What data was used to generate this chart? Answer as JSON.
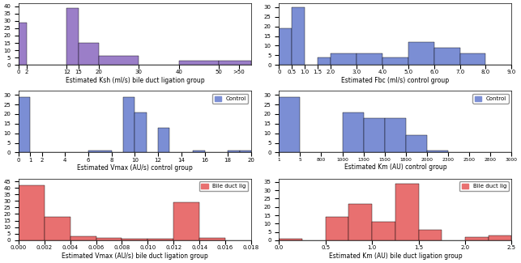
{
  "plots": [
    {
      "title": "Estimated Ksh (ml/s) bile duct ligation group",
      "color": "#9B7EC8",
      "bar_edges": [
        0,
        2,
        12,
        15,
        20,
        30,
        40,
        50,
        58
      ],
      "bar_heights": [
        29,
        0,
        39,
        15,
        6,
        0,
        3,
        3
      ],
      "xlim": [
        0,
        58
      ],
      "ylim": [
        0,
        42
      ],
      "xticks": [
        0,
        2,
        12,
        15,
        20,
        30,
        40,
        50,
        55
      ],
      "xticklabels": [
        "0",
        "2",
        "12",
        "15",
        "20",
        "30",
        "40",
        "50",
        ">50"
      ],
      "yticks": [
        0,
        5,
        10,
        15,
        20,
        25,
        30,
        35,
        40
      ],
      "legend": null,
      "categorical": false,
      "row": 0,
      "col": 0
    },
    {
      "title": "Estimated Fbc (ml/s) control group",
      "color": "#7B8ED4",
      "bar_edges": [
        0,
        0.5,
        1.0,
        1.5,
        2.0,
        3.0,
        4.0,
        5.0,
        6.0,
        7.0,
        8.0,
        9.0
      ],
      "bar_heights": [
        19,
        30,
        0,
        4,
        6,
        6,
        4,
        12,
        9,
        6,
        0
      ],
      "xlim": [
        0,
        9.0
      ],
      "ylim": [
        0,
        32
      ],
      "xticks": [
        0,
        0.5,
        1.0,
        1.5,
        2.0,
        3.0,
        4.0,
        5.0,
        6.0,
        7.0,
        8.0,
        9.0
      ],
      "xticklabels": [
        "0",
        "0.5",
        "1.0",
        "1.5",
        "2.0",
        "3.0",
        "4.0",
        "5.0",
        "6.0",
        "7.0",
        "8.0",
        "9.0"
      ],
      "yticks": [
        0,
        5,
        10,
        15,
        20,
        25,
        30
      ],
      "legend": null,
      "categorical": false,
      "row": 0,
      "col": 1
    },
    {
      "title": "Estimated Vmax (AU/s) control group",
      "color": "#7B8ED4",
      "bar_edges": [
        0,
        1,
        2,
        4,
        6,
        8,
        9,
        10,
        11,
        12,
        13,
        14,
        15,
        16,
        18,
        19,
        20
      ],
      "bar_heights": [
        29,
        0,
        0,
        0,
        1,
        0,
        29,
        21,
        0,
        13,
        0,
        0,
        1,
        0,
        1,
        1
      ],
      "xlim": [
        0,
        20
      ],
      "ylim": [
        0,
        32
      ],
      "xticks": [
        0,
        1,
        2,
        4,
        6,
        8,
        10,
        12,
        14,
        16,
        18,
        20
      ],
      "xticklabels": [
        "0",
        "1",
        "2",
        "4",
        "6",
        "8",
        "10",
        "12",
        "14",
        "16",
        "18",
        "20"
      ],
      "yticks": [
        0,
        5,
        10,
        15,
        20,
        25,
        30
      ],
      "legend": "Control",
      "legend_color": "#7B8ED4",
      "categorical": false,
      "row": 1,
      "col": 0
    },
    {
      "title": "Estimated Km (AU) control group",
      "color": "#7B8ED4",
      "bar_heights": [
        29,
        0,
        0,
        21,
        18,
        18,
        9,
        1,
        0,
        0,
        0
      ],
      "ylim": [
        0,
        32
      ],
      "xticklabels": [
        "1",
        "5",
        "800",
        "1000",
        "1300",
        "1500",
        "1800",
        "2000",
        "2300",
        "2500",
        "2800",
        "3000"
      ],
      "yticks": [
        0,
        5,
        10,
        15,
        20,
        25,
        30
      ],
      "legend": "Control",
      "legend_color": "#7B8ED4",
      "categorical": true,
      "row": 1,
      "col": 1
    },
    {
      "title": "Estimated Vmax (AU/s) bile duct ligation group",
      "color": "#E87070",
      "bar_edges": [
        0.0,
        0.002,
        0.004,
        0.006,
        0.008,
        0.01,
        0.012,
        0.014,
        0.016,
        0.018
      ],
      "bar_heights": [
        42,
        18,
        3,
        2,
        1,
        1,
        29,
        2,
        0
      ],
      "xlim": [
        0.0,
        0.018
      ],
      "ylim": [
        0,
        47
      ],
      "xticks": [
        0.0,
        0.002,
        0.004,
        0.006,
        0.008,
        0.01,
        0.012,
        0.014,
        0.016,
        0.018
      ],
      "xticklabels": [
        "0.000",
        "0.002",
        "0.004",
        "0.006",
        "0.008",
        "0.010",
        "0.012",
        "0.014",
        "0.016",
        "0.018"
      ],
      "yticks": [
        0,
        5,
        10,
        15,
        20,
        25,
        30,
        35,
        40,
        45
      ],
      "legend": "Bile duct lig",
      "legend_color": "#E87070",
      "categorical": false,
      "row": 2,
      "col": 0
    },
    {
      "title": "Estimated Km (AU) bile duct ligation group",
      "color": "#E87070",
      "bar_edges": [
        0.0,
        0.25,
        0.5,
        0.75,
        1.0,
        1.25,
        1.5,
        1.75,
        2.0,
        2.25,
        2.5
      ],
      "bar_heights": [
        1,
        0,
        14,
        22,
        11,
        34,
        6,
        0,
        2,
        3
      ],
      "xlim": [
        0.0,
        2.5
      ],
      "ylim": [
        0,
        37
      ],
      "xticks": [
        0.0,
        0.5,
        1.0,
        1.5,
        2.0,
        2.5
      ],
      "xticklabels": [
        "0.0",
        "0.5",
        "1.0",
        "1.5",
        "2.0",
        "2.5"
      ],
      "yticks": [
        0,
        5,
        10,
        15,
        20,
        25,
        30,
        35
      ],
      "legend": "Bile duct lig",
      "legend_color": "#E87070",
      "categorical": false,
      "row": 2,
      "col": 1
    }
  ],
  "fig_width": 6.43,
  "fig_height": 3.25,
  "dpi": 100,
  "bg_color": "#FFFFFF"
}
